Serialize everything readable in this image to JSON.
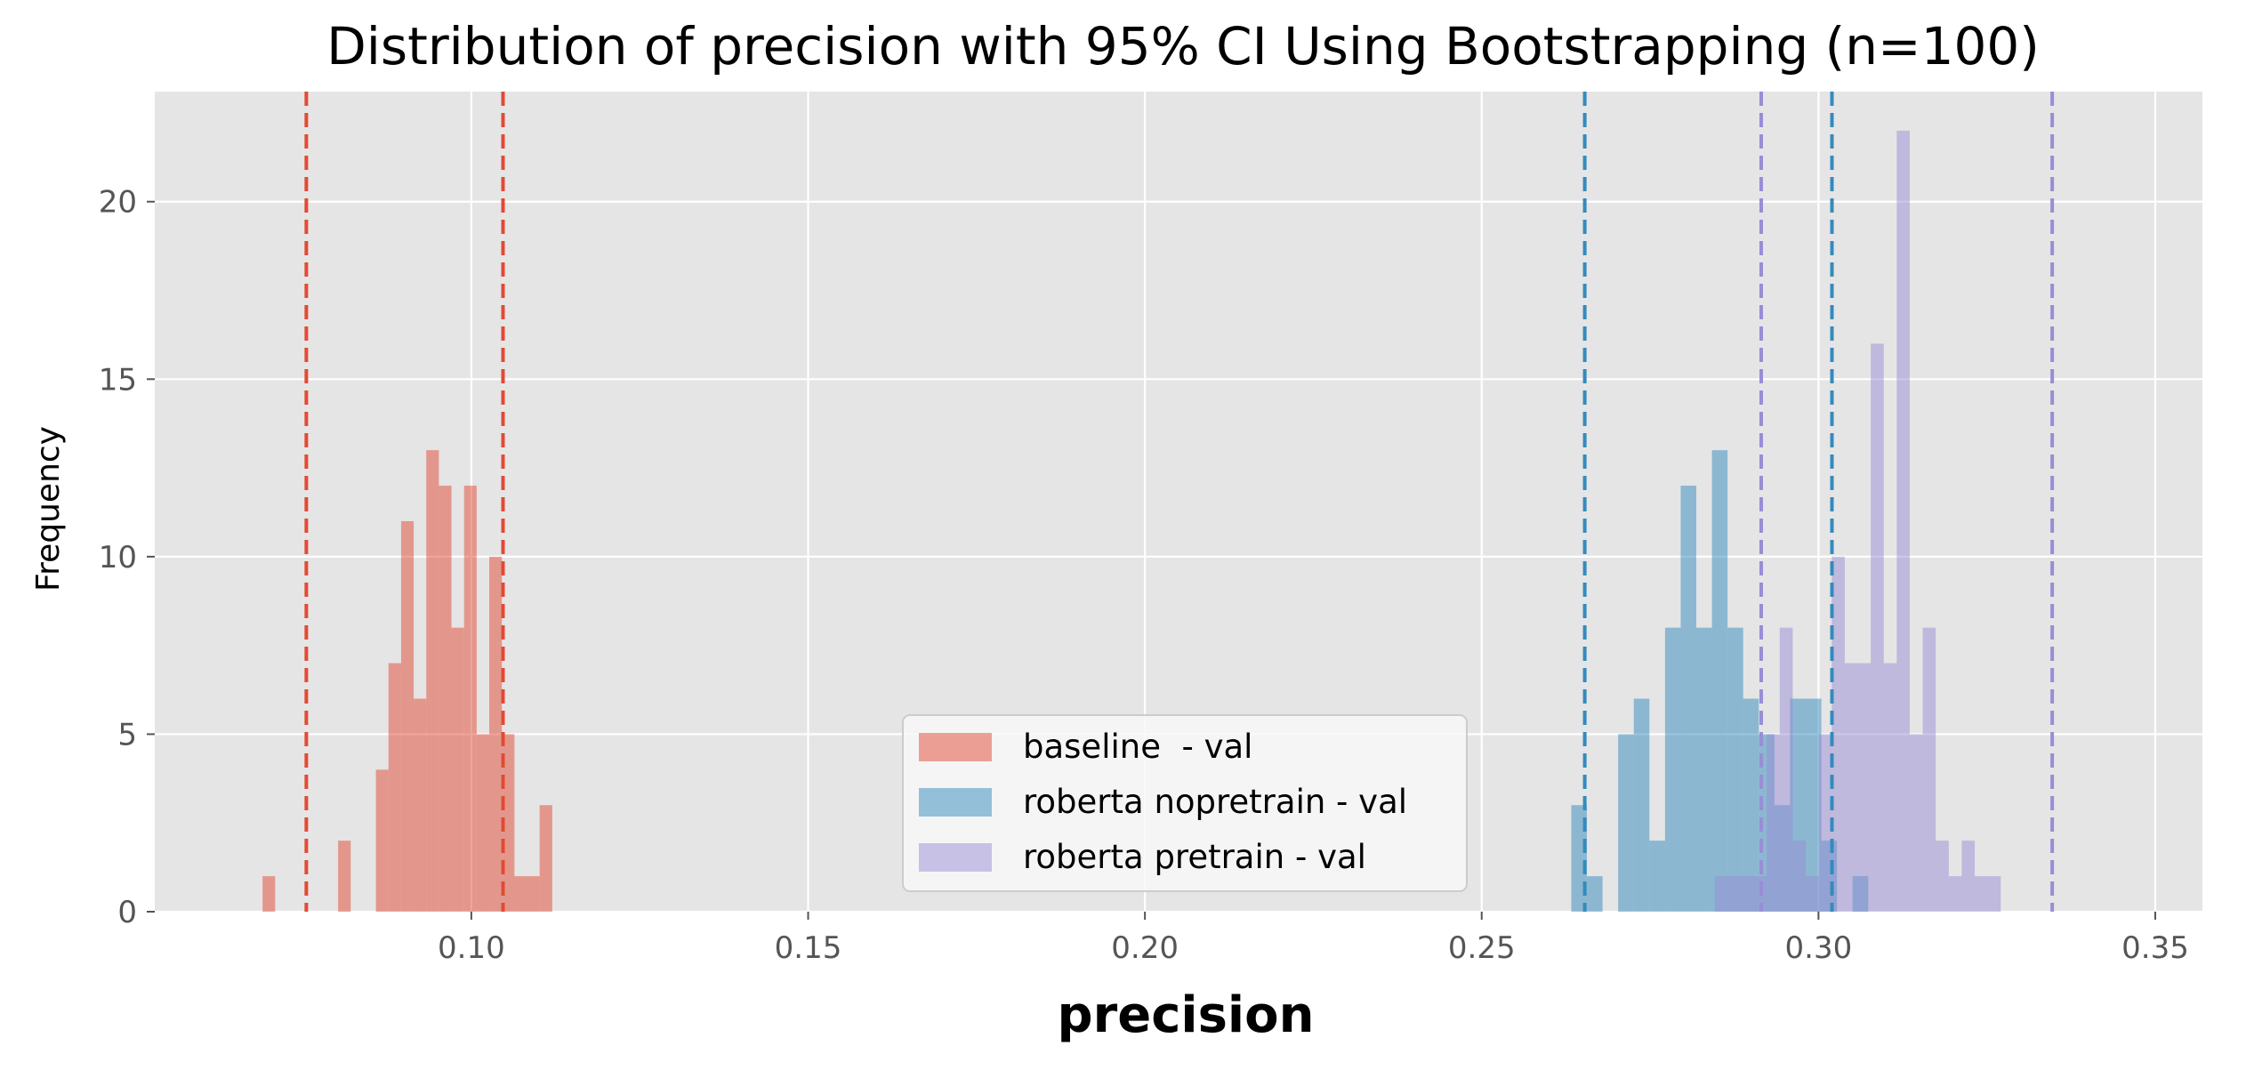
{
  "chart_data": {
    "type": "bar",
    "title": "Distribution of precision with 95% CI Using Bootstrapping (n=100)",
    "xlabel": "precision",
    "ylabel": "Frequency",
    "xlim": [
      0.053,
      0.357
    ],
    "ylim": [
      0,
      23.1
    ],
    "xticks": [
      {
        "value": 0.1,
        "label": "0.10"
      },
      {
        "value": 0.15,
        "label": "0.15"
      },
      {
        "value": 0.2,
        "label": "0.20"
      },
      {
        "value": 0.25,
        "label": "0.25"
      },
      {
        "value": 0.3,
        "label": "0.30"
      },
      {
        "value": 0.35,
        "label": "0.35"
      }
    ],
    "yticks": [
      {
        "value": 0,
        "label": "0"
      },
      {
        "value": 5,
        "label": "5"
      },
      {
        "value": 10,
        "label": "10"
      },
      {
        "value": 15,
        "label": "15"
      },
      {
        "value": 20,
        "label": "20"
      }
    ],
    "grid": true,
    "legend_position": "bottom-center",
    "series": [
      {
        "name": "baseline  - val",
        "color": "#E24A33",
        "opacity": 0.5,
        "bin_start": 0.069,
        "bin_width": 0.00187,
        "counts": [
          1,
          0,
          0,
          0,
          0,
          0,
          2,
          0,
          0,
          4,
          7,
          11,
          6,
          13,
          12,
          8,
          12,
          5,
          10,
          5,
          1,
          1,
          3
        ],
        "ci": [
          0.0755,
          0.1047
        ]
      },
      {
        "name": "roberta nopretrain - val",
        "color": "#348ABD",
        "opacity": 0.5,
        "bin_start": 0.2633,
        "bin_width": 0.00232,
        "counts": [
          3,
          1,
          0,
          5,
          6,
          2,
          8,
          12,
          8,
          13,
          8,
          6,
          5,
          3,
          6,
          6,
          2,
          0,
          1
        ],
        "ci": [
          0.2653,
          0.302
        ]
      },
      {
        "name": "roberta pretrain - val",
        "color": "#988ED5",
        "opacity": 0.5,
        "bin_start": 0.2846,
        "bin_width": 0.00193,
        "counts": [
          1,
          1,
          1,
          1,
          5,
          8,
          2,
          1,
          5,
          10,
          7,
          7,
          16,
          7,
          22,
          5,
          8,
          2,
          1,
          2,
          1,
          1
        ],
        "ci": [
          0.2915,
          0.3347
        ]
      }
    ]
  }
}
